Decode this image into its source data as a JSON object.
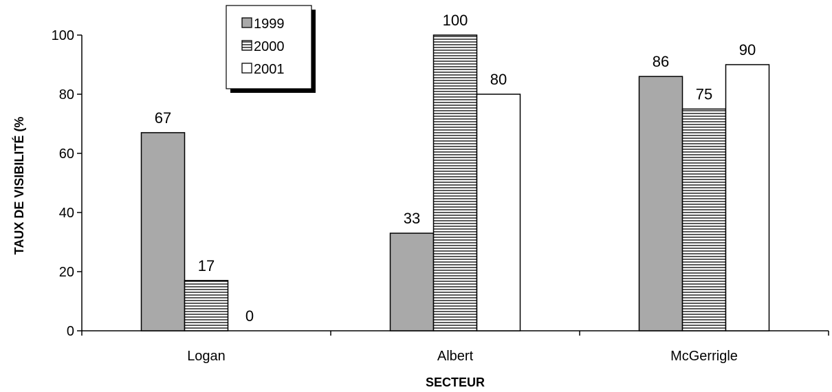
{
  "chart_data": {
    "type": "bar",
    "xlabel": "SECTEUR",
    "ylabel": "TAUX DE VISIBILITÉ (%",
    "categories": [
      "Logan",
      "Albert",
      "McGerrigle"
    ],
    "series": [
      {
        "name": "1999",
        "values": [
          67,
          33,
          86
        ],
        "fill": "gray"
      },
      {
        "name": "2000",
        "values": [
          17,
          100,
          75
        ],
        "fill": "hatch"
      },
      {
        "name": "2001",
        "values": [
          0,
          80,
          90
        ],
        "fill": "white"
      }
    ],
    "ylim": [
      0,
      100
    ],
    "yticks": [
      0,
      20,
      40,
      60,
      80,
      100
    ],
    "grid": false,
    "legend_position": "top-left",
    "colors": {
      "gray": "#a9a9a9",
      "hatch": "#000000",
      "white": "#ffffff",
      "stroke": "#000000"
    }
  }
}
